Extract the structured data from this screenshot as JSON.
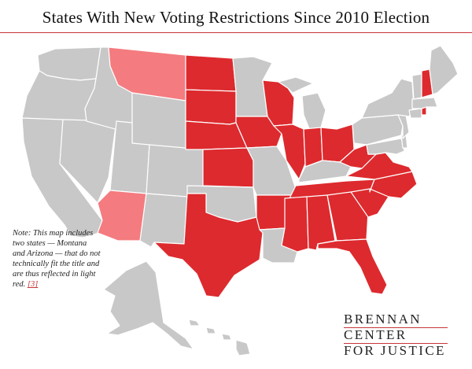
{
  "title": "States With New Voting Restrictions Since 2010 Election",
  "note": {
    "text": "Note: This map includes two states — Montana and Arizona — that do not technically fit the title and are thus reflected in light red.",
    "link_text": "[3]"
  },
  "logo": {
    "line1": "BRENNAN",
    "line2": "CENTER",
    "line3": "FOR JUSTICE"
  },
  "colors": {
    "restriction": "#dd2a2e",
    "light_red": "#f47b7f",
    "no_restriction": "#c8c8c8",
    "border": "#ffffff",
    "accent_rule": "#c9353a"
  },
  "states": {
    "restriction": [
      "ND",
      "SD",
      "NE",
      "KS",
      "TX",
      "IA",
      "AR",
      "MS",
      "AL",
      "GA",
      "FL",
      "SC",
      "NC",
      "TN",
      "VA",
      "WV",
      "OH",
      "IN",
      "IL",
      "WI",
      "NH",
      "RI"
    ],
    "light_red": [
      "MT",
      "AZ"
    ],
    "no_restriction": [
      "WA",
      "OR",
      "CA",
      "NV",
      "ID",
      "WY",
      "UT",
      "CO",
      "NM",
      "OK",
      "MN",
      "MO",
      "LA",
      "MI",
      "KY",
      "PA",
      "NY",
      "VT",
      "ME",
      "MA",
      "CT",
      "NJ",
      "DE",
      "MD",
      "AK",
      "HI"
    ]
  }
}
